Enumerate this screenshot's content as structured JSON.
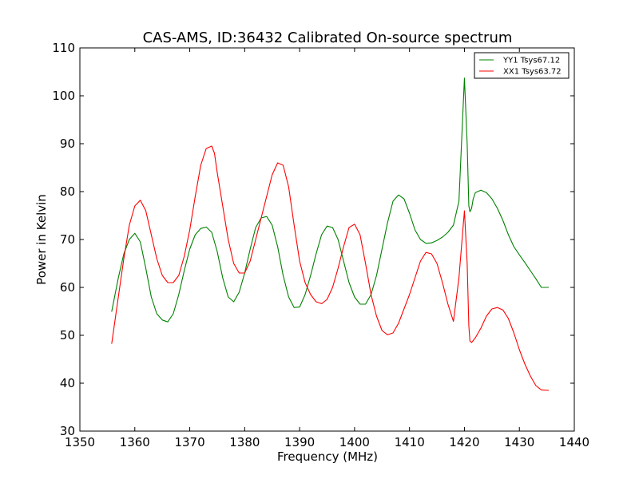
{
  "chart_data": {
    "type": "line",
    "title": "CAS-AMS, ID:36432 Calibrated On-source spectrum",
    "xlabel": "Frequency (MHz)",
    "ylabel": "Power in Kelvin",
    "xlim": [
      1350,
      1440
    ],
    "ylim": [
      30,
      110
    ],
    "xticks": [
      1350,
      1360,
      1370,
      1380,
      1390,
      1400,
      1410,
      1420,
      1430,
      1440
    ],
    "yticks": [
      30,
      40,
      50,
      60,
      70,
      80,
      90,
      100,
      110
    ],
    "grid": false,
    "legend_position": "top-right",
    "series": [
      {
        "name": "YY1 Tsys67.12",
        "color": "#008000",
        "x": [
          1355.8,
          1357.0,
          1358.0,
          1359.0,
          1360.0,
          1361.0,
          1362.0,
          1363.0,
          1364.0,
          1365.0,
          1366.0,
          1367.0,
          1368.0,
          1369.0,
          1370.0,
          1371.0,
          1372.0,
          1373.0,
          1374.0,
          1375.0,
          1376.0,
          1377.0,
          1378.0,
          1379.0,
          1380.0,
          1381.0,
          1382.0,
          1383.0,
          1384.0,
          1385.0,
          1386.0,
          1387.0,
          1388.0,
          1389.0,
          1390.0,
          1391.0,
          1392.0,
          1393.0,
          1394.0,
          1395.0,
          1396.0,
          1397.0,
          1398.0,
          1399.0,
          1400.0,
          1401.0,
          1402.0,
          1403.0,
          1404.0,
          1405.0,
          1406.0,
          1407.0,
          1408.0,
          1409.0,
          1410.0,
          1411.0,
          1412.0,
          1413.0,
          1414.0,
          1415.0,
          1416.0,
          1417.0,
          1418.0,
          1419.0,
          1420.0,
          1420.5,
          1420.8,
          1421.0,
          1421.3,
          1421.6,
          1422.0,
          1423.0,
          1424.0,
          1425.0,
          1426.0,
          1427.0,
          1428.0,
          1429.0,
          1430.0,
          1431.0,
          1432.0,
          1433.0,
          1434.0,
          1435.3
        ],
        "y": [
          55.0,
          62.0,
          67.0,
          70.0,
          71.3,
          69.5,
          64.0,
          58.0,
          54.5,
          53.2,
          52.8,
          54.5,
          58.5,
          63.5,
          68.0,
          71.0,
          72.3,
          72.6,
          71.5,
          67.5,
          62.0,
          58.0,
          57.0,
          59.0,
          63.0,
          68.0,
          72.5,
          74.5,
          74.8,
          73.0,
          68.5,
          62.5,
          58.0,
          55.8,
          55.9,
          58.5,
          62.5,
          67.0,
          71.0,
          72.8,
          72.5,
          70.0,
          65.5,
          61.0,
          58.0,
          56.5,
          56.5,
          58.5,
          62.5,
          68.0,
          73.5,
          78.0,
          79.3,
          78.5,
          75.5,
          72.0,
          70.0,
          69.2,
          69.3,
          69.8,
          70.5,
          71.5,
          73.0,
          78.0,
          103.7,
          90.0,
          77.0,
          75.8,
          76.5,
          78.5,
          79.8,
          80.3,
          79.8,
          78.5,
          76.5,
          74.0,
          71.0,
          68.5,
          66.8,
          65.2,
          63.5,
          61.8,
          60.0,
          60.0
        ],
        "y_note": ""
      },
      {
        "name": "XX1 Tsys63.72",
        "color": "#ff0000",
        "x": [
          1355.8,
          1357.0,
          1358.0,
          1359.0,
          1360.0,
          1361.0,
          1362.0,
          1363.0,
          1364.0,
          1365.0,
          1366.0,
          1367.0,
          1368.0,
          1369.0,
          1370.0,
          1371.0,
          1372.0,
          1373.0,
          1374.0,
          1374.5,
          1375.0,
          1376.0,
          1377.0,
          1378.0,
          1379.0,
          1380.0,
          1381.0,
          1382.0,
          1383.0,
          1384.0,
          1385.0,
          1386.0,
          1387.0,
          1388.0,
          1389.0,
          1390.0,
          1391.0,
          1392.0,
          1393.0,
          1394.0,
          1395.0,
          1396.0,
          1397.0,
          1398.0,
          1399.0,
          1400.0,
          1401.0,
          1402.0,
          1403.0,
          1404.0,
          1405.0,
          1406.0,
          1407.0,
          1408.0,
          1409.0,
          1410.0,
          1411.0,
          1412.0,
          1413.0,
          1414.0,
          1415.0,
          1416.0,
          1417.0,
          1418.0,
          1419.0,
          1420.0,
          1420.5,
          1420.8,
          1421.0,
          1421.3,
          1422.0,
          1423.0,
          1424.0,
          1425.0,
          1426.0,
          1427.0,
          1428.0,
          1429.0,
          1430.0,
          1431.0,
          1432.0,
          1433.0,
          1434.0,
          1435.3
        ],
        "y": [
          48.3,
          58.0,
          66.0,
          73.0,
          77.0,
          78.2,
          76.0,
          71.0,
          66.0,
          62.5,
          61.0,
          61.0,
          62.5,
          66.5,
          72.0,
          79.0,
          85.5,
          89.0,
          89.5,
          88.0,
          84.0,
          77.0,
          70.0,
          65.0,
          63.0,
          63.0,
          65.5,
          70.0,
          74.5,
          79.0,
          83.5,
          86.0,
          85.5,
          81.0,
          73.0,
          65.5,
          61.0,
          58.5,
          57.0,
          56.6,
          57.5,
          60.0,
          64.0,
          68.5,
          72.5,
          73.2,
          71.0,
          65.0,
          58.5,
          54.0,
          51.0,
          50.1,
          50.5,
          52.5,
          55.5,
          58.5,
          62.0,
          65.5,
          67.3,
          67.0,
          65.0,
          61.0,
          56.5,
          52.9,
          62.0,
          76.0,
          65.0,
          52.0,
          48.8,
          48.5,
          49.5,
          51.5,
          54.0,
          55.5,
          55.8,
          55.3,
          53.5,
          50.5,
          47.0,
          44.0,
          41.5,
          39.5,
          38.6,
          38.5
        ],
        "y_note": ""
      }
    ]
  }
}
